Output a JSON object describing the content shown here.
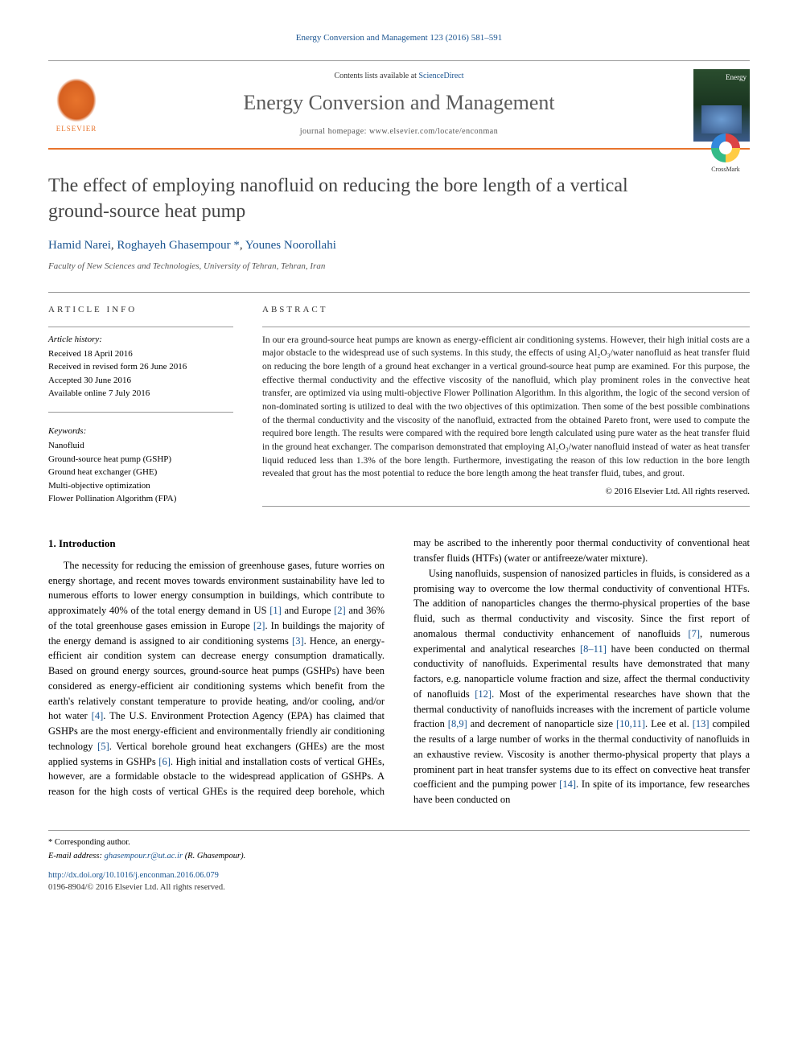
{
  "header": {
    "citation": "Energy Conversion and Management 123 (2016) 581–591",
    "contents_prefix": "Contents lists available at ",
    "contents_link": "ScienceDirect",
    "journal_name": "Energy Conversion and Management",
    "homepage_prefix": "journal homepage: ",
    "homepage_url": "www.elsevier.com/locate/enconman",
    "publisher": "ELSEVIER"
  },
  "crossmark": "CrossMark",
  "article": {
    "title": "The effect of employing nanofluid on reducing the bore length of a vertical ground-source heat pump",
    "authors_html": "Hamid Narei, Roghayeh Ghasempour *, Younes Noorollahi",
    "authors": [
      {
        "name": "Hamid Narei"
      },
      {
        "name": "Roghayeh Ghasempour",
        "corresponding": true
      },
      {
        "name": "Younes Noorollahi"
      }
    ],
    "affiliation": "Faculty of New Sciences and Technologies, University of Tehran, Tehran, Iran"
  },
  "info": {
    "heading": "ARTICLE INFO",
    "history_label": "Article history:",
    "history": [
      "Received 18 April 2016",
      "Received in revised form 26 June 2016",
      "Accepted 30 June 2016",
      "Available online 7 July 2016"
    ],
    "keywords_label": "Keywords:",
    "keywords": [
      "Nanofluid",
      "Ground-source heat pump (GSHP)",
      "Ground heat exchanger (GHE)",
      "Multi-objective optimization",
      "Flower Pollination Algorithm (FPA)"
    ]
  },
  "abstract": {
    "heading": "ABSTRACT",
    "text": "In our era ground-source heat pumps are known as energy-efficient air conditioning systems. However, their high initial costs are a major obstacle to the widespread use of such systems. In this study, the effects of using Al₂O₃/water nanofluid as heat transfer fluid on reducing the bore length of a ground heat exchanger in a vertical ground-source heat pump are examined. For this purpose, the effective thermal conductivity and the effective viscosity of the nanofluid, which play prominent roles in the convective heat transfer, are optimized via using multi-objective Flower Pollination Algorithm. In this algorithm, the logic of the second version of non-dominated sorting is utilized to deal with the two objectives of this optimization. Then some of the best possible combinations of the thermal conductivity and the viscosity of the nanofluid, extracted from the obtained Pareto front, were used to compute the required bore length. The results were compared with the required bore length calculated using pure water as the heat transfer fluid in the ground heat exchanger. The comparison demonstrated that employing Al₂O₃/water nanofluid instead of water as heat transfer liquid reduced less than 1.3% of the bore length. Furthermore, investigating the reason of this low reduction in the bore length revealed that grout has the most potential to reduce the bore length among the heat transfer fluid, tubes, and grout.",
    "copyright": "© 2016 Elsevier Ltd. All rights reserved."
  },
  "body": {
    "section_title": "1. Introduction",
    "p1": "The necessity for reducing the emission of greenhouse gases, future worries on energy shortage, and recent moves towards environment sustainability have led to numerous efforts to lower energy consumption in buildings, which contribute to approximately 40% of the total energy demand in US [1] and Europe [2] and 36% of the total greenhouse gases emission in Europe [2]. In buildings the majority of the energy demand is assigned to air conditioning systems [3]. Hence, an energy-efficient air condition system can decrease energy consumption dramatically. Based on ground energy sources, ground-source heat pumps (GSHPs) have been considered as energy-efficient air conditioning systems which benefit from the earth's relatively constant temperature to provide heating, and/or cooling, and/or hot water [4]. The U.S. Environment Protection Agency (EPA) has claimed that GSHPs are the most energy-efficient and environmentally friendly air conditioning technology [5]. Vertical borehole ground heat exchangers (GHEs) are the most applied systems in GSHPs [6]. High initial and installation costs of vertical GHEs, however, are a formidable",
    "p2": "obstacle to the widespread application of GSHPs. A reason for the high costs of vertical GHEs is the required deep borehole, which may be ascribed to the inherently poor thermal conductivity of conventional heat transfer fluids (HTFs) (water or antifreeze/water mixture).",
    "p3": "Using nanofluids, suspension of nanosized particles in fluids, is considered as a promising way to overcome the low thermal conductivity of conventional HTFs. The addition of nanoparticles changes the thermo-physical properties of the base fluid, such as thermal conductivity and viscosity. Since the first report of anomalous thermal conductivity enhancement of nanofluids [7], numerous experimental and analytical researches [8–11] have been conducted on thermal conductivity of nanofluids. Experimental results have demonstrated that many factors, e.g. nanoparticle volume fraction and size, affect the thermal conductivity of nanofluids [12]. Most of the experimental researches have shown that the thermal conductivity of nanofluids increases with the increment of particle volume fraction [8,9] and decrement of nanoparticle size [10,11]. Lee et al. [13] compiled the results of a large number of works in the thermal conductivity of nanofluids in an exhaustive review. Viscosity is another thermo-physical property that plays a prominent part in heat transfer systems due to its effect on convective heat transfer coefficient and the pumping power [14]. In spite of its importance, few researches have been conducted on",
    "refs": [
      "[1]",
      "[2]",
      "[3]",
      "[4]",
      "[5]",
      "[6]",
      "[7]",
      "[8–11]",
      "[12]",
      "[8,9]",
      "[10,11]",
      "[13]",
      "[14]"
    ]
  },
  "footer": {
    "corr_label": "* Corresponding author.",
    "email_label": "E-mail address: ",
    "email": "ghasempour.r@ut.ac.ir",
    "email_name": " (R. Ghasempour).",
    "doi": "http://dx.doi.org/10.1016/j.enconman.2016.06.079",
    "issn": "0196-8904/© 2016 Elsevier Ltd. All rights reserved."
  },
  "colors": {
    "link": "#1a5490",
    "accent": "#e8742c",
    "text": "#000000",
    "heading_gray": "#444444"
  }
}
